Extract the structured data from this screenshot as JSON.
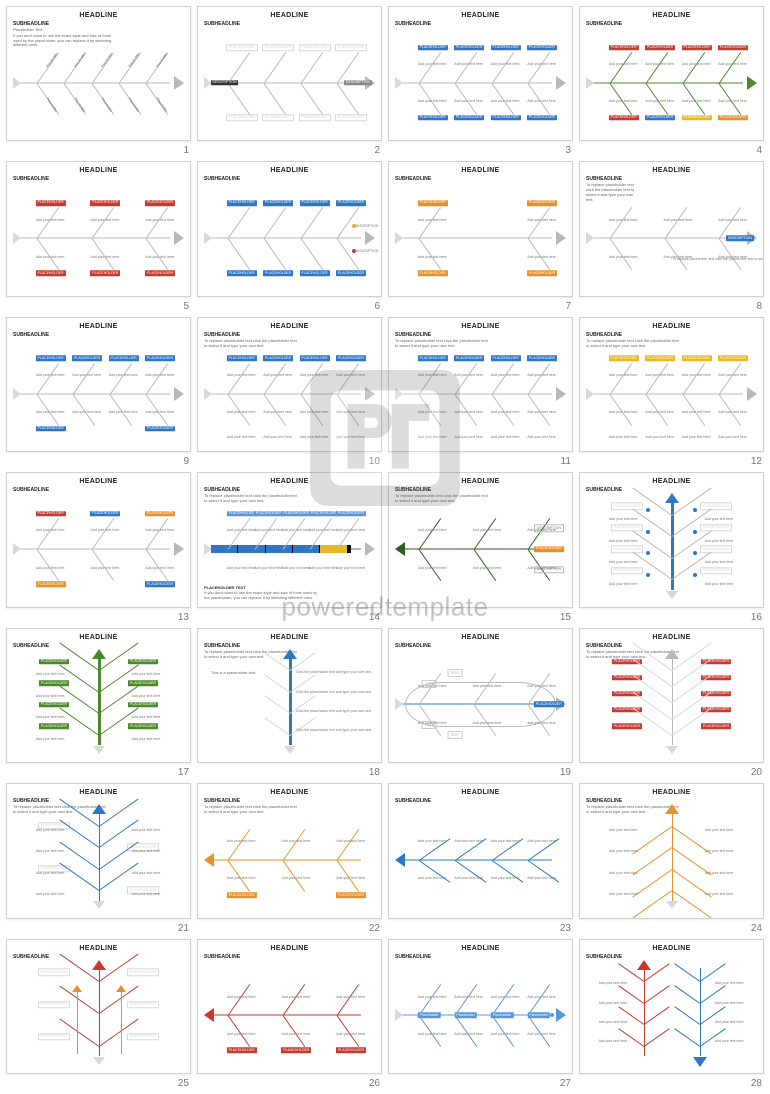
{
  "watermark_text": "poweredtemplate",
  "common": {
    "headline": "HEADLINE",
    "subheadline": "SUBHEADLINE",
    "placeholder": "PLACEHOLDER",
    "description": "DESCRIPTION",
    "add_text": "Add your text here.",
    "ph_text_title": "Placeholder Text",
    "long_subtext": "If you don't want to use the exact style and size of fonts used by the placeholder, you can replace it by selecting different ones.",
    "replace_subtext": "To replace placeholder text click the placeholder text to select it and type your own text.",
    "click_text": "Click the placeholder text and type your own text.",
    "this_is_ph": "This is a placeholder text.",
    "text_label": "TEXT"
  },
  "colors": {
    "gray": "#b8b8b8",
    "gray_light": "#d8d8d8",
    "gray_dark": "#888888",
    "black": "#333333",
    "blue": "#2f77c6",
    "blue_light": "#5a96d6",
    "red": "#c63a30",
    "orange": "#e8902b",
    "yellow": "#e8b82b",
    "green": "#4a8a2c",
    "dk_green": "#2c5e1f",
    "olive": "#4c663a"
  },
  "grid": {
    "cols": 4,
    "rows": 7,
    "count": 28
  },
  "slides": [
    {
      "n": 1,
      "type": "h",
      "spine": "gray",
      "show_sub": true,
      "sub_style": "long",
      "ribs": {
        "count": 5,
        "up": true,
        "down": true,
        "color": "gray"
      },
      "labels": "diag-text"
    },
    {
      "n": 2,
      "type": "h",
      "spine": "gray",
      "show_sub": true,
      "ribs": {
        "count": 4,
        "up": true,
        "down": true,
        "color": "gray"
      },
      "tags_top": {
        "color": "gray_light",
        "count": 4,
        "outline": true
      },
      "tags_bot": {
        "color": "gray_light",
        "count": 4,
        "outline": true
      },
      "left_tag": {
        "color": "black",
        "label": "DESCRIPTION"
      },
      "right_tag": {
        "color": "gray_dark",
        "label": "DESCRIPTION"
      }
    },
    {
      "n": 3,
      "type": "h",
      "spine": "gray",
      "show_sub": true,
      "ribs": {
        "count": 4,
        "up": true,
        "down": true,
        "color": "gray"
      },
      "tags_top": {
        "color": "blue",
        "count": 4
      },
      "tags_bot": {
        "color": "blue",
        "count": 4
      },
      "tiny_text": true
    },
    {
      "n": 4,
      "type": "h",
      "spine": "green",
      "show_sub": true,
      "head_fill": "green",
      "ribs": {
        "count": 4,
        "up": true,
        "down": true,
        "color": "green"
      },
      "tags_top": {
        "color": "red",
        "count": 4
      },
      "tags_bot": {
        "colors": [
          "red",
          "blue",
          "yellow",
          "orange"
        ],
        "count": 4
      },
      "tiny_text": true
    },
    {
      "n": 5,
      "type": "h",
      "spine": "gray",
      "show_sub": true,
      "ribs": {
        "count": 3,
        "up": true,
        "down": true,
        "color": "gray"
      },
      "tags_top": {
        "color": "red",
        "count": 3
      },
      "tags_bot": {
        "color": "red",
        "count": 3
      },
      "tiny_text": true
    },
    {
      "n": 6,
      "type": "h",
      "spine": "gray",
      "show_sub": true,
      "ribs": {
        "count": 4,
        "up": true,
        "down": true,
        "color": "gray"
      },
      "tags_top": {
        "color": "blue",
        "count": 4
      },
      "tags_bot": {
        "color": "blue",
        "count": 4
      },
      "dots_right": [
        {
          "color": "yellow"
        },
        {
          "color": "red"
        }
      ],
      "tiny_text_right": true
    },
    {
      "n": 7,
      "type": "h",
      "spine": "gray",
      "show_sub": true,
      "ribs": {
        "count": 2,
        "up": true,
        "down": true,
        "color": "gray"
      },
      "tags_top": {
        "color": "orange",
        "count": 2
      },
      "tags_bot": {
        "color": "orange",
        "count": 2
      },
      "tiny_text": true
    },
    {
      "n": 8,
      "type": "h",
      "spine": "gray",
      "show_sub": true,
      "sub_style": "replace",
      "sub_narrow": true,
      "ribs": {
        "count": 3,
        "up": true,
        "down": true,
        "color": "gray"
      },
      "right_tag": {
        "color": "blue",
        "label": "DESCRIPTION"
      },
      "right_caption": true,
      "tiny_text": true
    },
    {
      "n": 9,
      "type": "h",
      "spine": "gray",
      "show_sub": true,
      "ribs": {
        "count": 4,
        "up": true,
        "down": true,
        "color": "gray"
      },
      "tags_top": {
        "color": "blue",
        "count": 4
      },
      "tags_bot": {
        "color": "blue",
        "count": 2,
        "bottom_extra": true
      },
      "tiny_text": true
    },
    {
      "n": 10,
      "type": "h",
      "spine": "gray",
      "show_sub": true,
      "sub_style": "replace",
      "ribs": {
        "count": 4,
        "up": true,
        "down": true,
        "color": "gray"
      },
      "tags_top": {
        "color": "blue",
        "count": 4
      },
      "tiny_text": true,
      "below_text_row": true
    },
    {
      "n": 11,
      "type": "h",
      "spine": "gray",
      "show_sub": true,
      "sub_style": "replace",
      "ribs": {
        "count": 4,
        "up": true,
        "down": true,
        "color": "gray"
      },
      "tags_top": {
        "color": "blue",
        "count": 4
      },
      "tiny_text": true,
      "below_text_row": true
    },
    {
      "n": 12,
      "type": "h",
      "spine": "gray",
      "show_sub": true,
      "sub_style": "replace",
      "ribs": {
        "count": 4,
        "up": true,
        "down": true,
        "color": "gray"
      },
      "tags_top": {
        "color": "yellow",
        "count": 4,
        "joined": true
      },
      "tiny_text": true,
      "below_text_row": true
    },
    {
      "n": 13,
      "type": "h",
      "spine": "gray",
      "show_sub": true,
      "ribs": {
        "count": 3,
        "up": true,
        "down": true,
        "color": "gray"
      },
      "tags_top": {
        "colors": [
          "red",
          "blue",
          "orange"
        ],
        "count": 3,
        "sparse": true
      },
      "tags_bot": {
        "colors": [
          "orange",
          "blue"
        ],
        "count": 2,
        "sparse": true
      },
      "tiny_text": true
    },
    {
      "n": 14,
      "type": "chev",
      "spine": "blue",
      "show_sub": true,
      "sub_style": "replace",
      "ribs": {
        "count": 5,
        "up": true,
        "down": false,
        "color": "gray"
      },
      "tags_top": {
        "color": "blue_light",
        "count": 5
      },
      "tags_bot_bar": {
        "colors": [
          "blue",
          "blue",
          "blue",
          "blue",
          "yellow"
        ]
      },
      "footer_label": "PLACEHOLDER TEXT",
      "footer_text": true,
      "tiny_text": true
    },
    {
      "n": 15,
      "type": "h",
      "spine": "dk_green",
      "show_sub": true,
      "sub_style": "replace",
      "head_fill": "dk_green",
      "head_left": true,
      "ribs": {
        "count": 3,
        "up": true,
        "down": true,
        "color": "dk_green"
      },
      "right_stack": [
        "DESCRIPTION",
        "PLACEHOLDER",
        "DESCRIPTION"
      ],
      "right_stack_styles": [
        "outline",
        "orange",
        "outline"
      ],
      "tiny_text": true
    },
    {
      "n": 16,
      "type": "v",
      "spine": "blue",
      "show_sub": true,
      "thick": true,
      "vribs": {
        "count": 4,
        "color": "gray"
      },
      "side_tags": {
        "color": "gray_light",
        "outline": true
      },
      "dots_on_ribs": "blue",
      "tiny_text_sides": true
    },
    {
      "n": 17,
      "type": "v",
      "spine": "green",
      "show_sub": true,
      "thick": true,
      "vribs": {
        "count": 4,
        "color": "green"
      },
      "side_tags": {
        "color": "green"
      },
      "tiny_text_sides": true
    },
    {
      "n": 18,
      "type": "v",
      "spine": "blue",
      "show_sub": true,
      "sub_style": "replace",
      "thick": true,
      "vribs": {
        "count": 4,
        "color": "gray_light",
        "short": true
      },
      "left_text_wide": "this_is_ph",
      "right_texts": 4
    },
    {
      "n": 19,
      "type": "fish",
      "spine": "blue",
      "show_sub": true,
      "ribs": {
        "count": 3,
        "up": true,
        "down": true,
        "color": "gray"
      },
      "text_boxes": 4,
      "right_tag": {
        "color": "blue",
        "label": "PLACEHOLDER"
      },
      "tiny_text": true
    },
    {
      "n": 20,
      "type": "v",
      "spine": "gray",
      "show_sub": true,
      "sub_style": "replace",
      "vribs": {
        "count": 5,
        "color": "gray_light"
      },
      "side_tags": {
        "color": "red",
        "left_only": false
      },
      "tiny_text_sides": false
    },
    {
      "n": 21,
      "type": "v",
      "spine": "blue",
      "show_sub": true,
      "sub_style": "replace",
      "vribs": {
        "count": 4,
        "color": "blue"
      },
      "side_tags": {
        "color": "gray_light",
        "outline": true,
        "alt": true
      },
      "tiny_text_sides": true
    },
    {
      "n": 22,
      "type": "h",
      "spine": "orange",
      "show_sub": true,
      "sub_style": "replace",
      "head_fill": "orange",
      "head_left": true,
      "ribs": {
        "count": 3,
        "up": true,
        "down": true,
        "color": "orange"
      },
      "tags_bot": {
        "color": "orange",
        "count": 2,
        "sparse": true
      },
      "tiny_text": true
    },
    {
      "n": 23,
      "type": "h",
      "spine": "blue",
      "show_sub": true,
      "head_fill": "blue",
      "head_left": true,
      "mirror": true,
      "ribs": {
        "count": 4,
        "up": true,
        "down": true,
        "color": "blue",
        "swept": true
      },
      "tiny_text": true
    },
    {
      "n": 24,
      "type": "v",
      "spine": "orange",
      "show_sub": true,
      "sub_style": "replace",
      "vribs": {
        "count": 4,
        "color": "orange",
        "swept": true
      },
      "tiny_text_sides": true
    },
    {
      "n": 25,
      "type": "v",
      "spine": "red",
      "show_sub": true,
      "thick": false,
      "multi_spine": [
        "orange",
        "orange"
      ],
      "vribs": {
        "count": 3,
        "color": "red"
      },
      "side_tags": {
        "color": "gray_light",
        "outline": true
      },
      "tiny_text_sides": false
    },
    {
      "n": 26,
      "type": "h",
      "spine": "red",
      "show_sub": true,
      "head_fill": "red",
      "head_left": true,
      "ribs": {
        "count": 3,
        "up": true,
        "down": true,
        "color": "red"
      },
      "tags_bot": {
        "color": "red",
        "count": 3
      },
      "tiny_text": true
    },
    {
      "n": 27,
      "type": "h",
      "spine": "blue_light",
      "show_sub": true,
      "head_fill": "blue_light",
      "ribs": {
        "count": 4,
        "up": true,
        "down": true,
        "color": "blue_light"
      },
      "spine_tags": {
        "color": "blue_light",
        "count": 4,
        "on_spine": true
      },
      "tiny_text": true,
      "dot_right": "blue_light"
    },
    {
      "n": 28,
      "type": "v-dual",
      "show_sub": true,
      "left": {
        "spine": "red",
        "vribs": 4
      },
      "right": {
        "spine": "blue",
        "vribs": 4,
        "down": true
      },
      "tiny_text_sides": true
    }
  ]
}
